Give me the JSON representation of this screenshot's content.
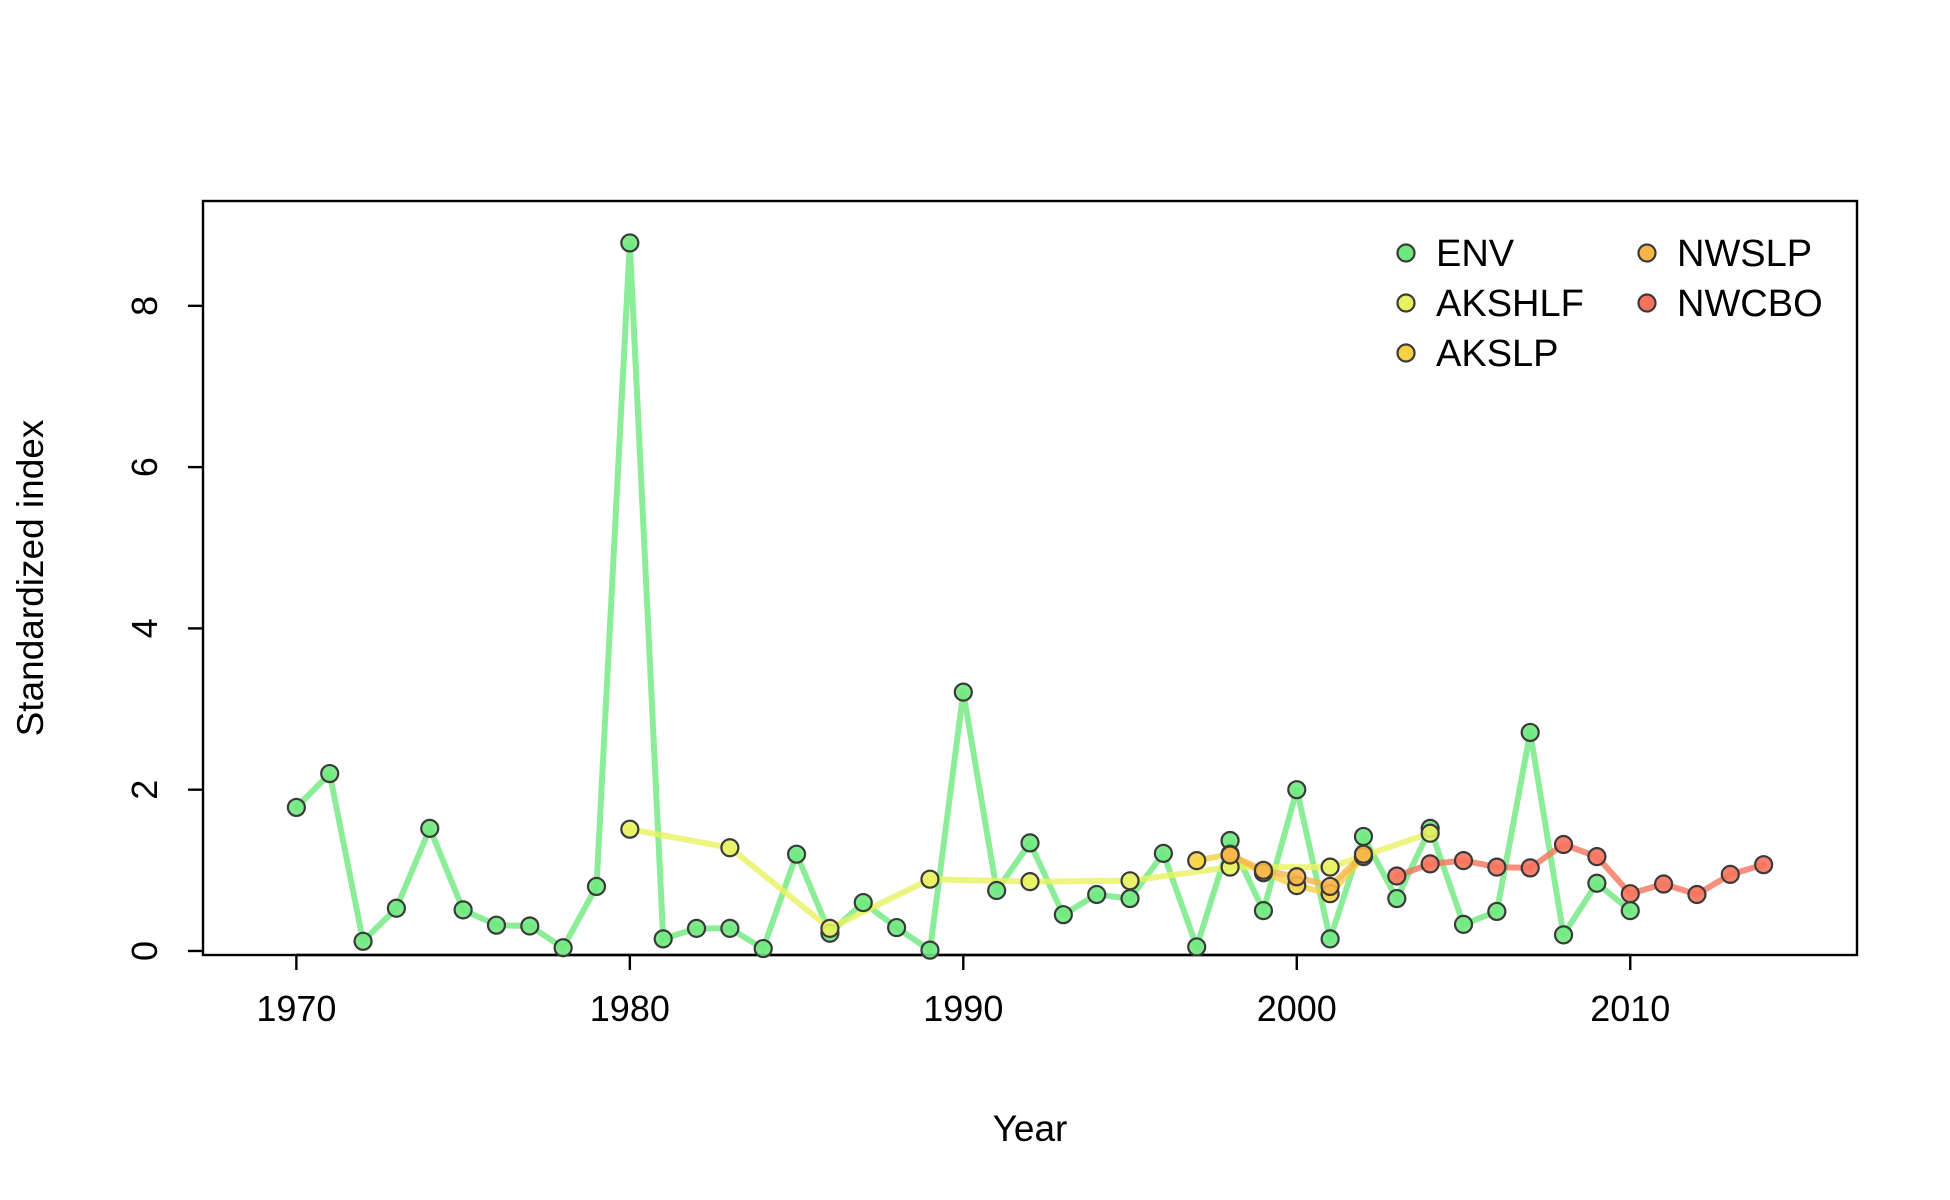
{
  "chart_data": {
    "type": "line",
    "title": "",
    "xlabel": "Year",
    "ylabel": "Standardized index",
    "xlim": [
      1967.2,
      2016.8
    ],
    "ylim": [
      -0.05,
      9.3
    ],
    "x_ticks": [
      1970,
      1980,
      1990,
      2000,
      2010
    ],
    "y_ticks": [
      0,
      2,
      4,
      6,
      8
    ],
    "grid": false,
    "legend_position": "top-right",
    "series": [
      {
        "name": "ENV",
        "color": "#6fe87e",
        "x": [
          1970,
          1971,
          1972,
          1973,
          1974,
          1975,
          1976,
          1977,
          1978,
          1979,
          1980,
          1981,
          1982,
          1983,
          1984,
          1985,
          1986,
          1987,
          1988,
          1989,
          1990,
          1991,
          1992,
          1993,
          1994,
          1995,
          1996,
          1997,
          1998,
          1999,
          2000,
          2001,
          2002,
          2003,
          2004,
          2005,
          2006,
          2007,
          2008,
          2009,
          2010
        ],
        "y": [
          1.78,
          2.2,
          0.12,
          0.53,
          1.52,
          0.51,
          0.32,
          0.31,
          0.04,
          0.8,
          8.78,
          0.15,
          0.28,
          0.28,
          0.03,
          1.2,
          0.22,
          0.6,
          0.29,
          0.01,
          3.21,
          0.75,
          1.34,
          0.45,
          0.7,
          0.65,
          1.21,
          0.05,
          1.37,
          0.5,
          2.0,
          0.15,
          1.42,
          0.65,
          1.52,
          0.33,
          0.49,
          2.71,
          0.2,
          0.84,
          0.5
        ]
      },
      {
        "name": "AKSHLF",
        "color": "#e8f260",
        "x": [
          1980,
          1983,
          1986,
          1989,
          1992,
          1995,
          1998,
          2001,
          2004
        ],
        "y": [
          1.51,
          1.28,
          0.28,
          0.89,
          0.86,
          0.87,
          1.04,
          1.04,
          1.46
        ]
      },
      {
        "name": "AKSLP",
        "color": "#f6d145",
        "x": [
          1997,
          1998,
          1999,
          2000,
          2001,
          2002
        ],
        "y": [
          1.12,
          1.2,
          0.97,
          0.81,
          0.71,
          1.17
        ]
      },
      {
        "name": "NWSLP",
        "color": "#f7b54a",
        "x": [
          1998,
          1999,
          2000,
          2001,
          2002
        ],
        "y": [
          1.19,
          1.0,
          0.92,
          0.8,
          1.2
        ]
      },
      {
        "name": "NWCBO",
        "color": "#f5735c",
        "x": [
          2003,
          2004,
          2005,
          2006,
          2007,
          2008,
          2009,
          2010,
          2011,
          2012,
          2013,
          2014
        ],
        "y": [
          0.93,
          1.08,
          1.12,
          1.04,
          1.03,
          1.32,
          1.17,
          0.71,
          0.83,
          0.7,
          0.95,
          1.07
        ]
      }
    ]
  }
}
